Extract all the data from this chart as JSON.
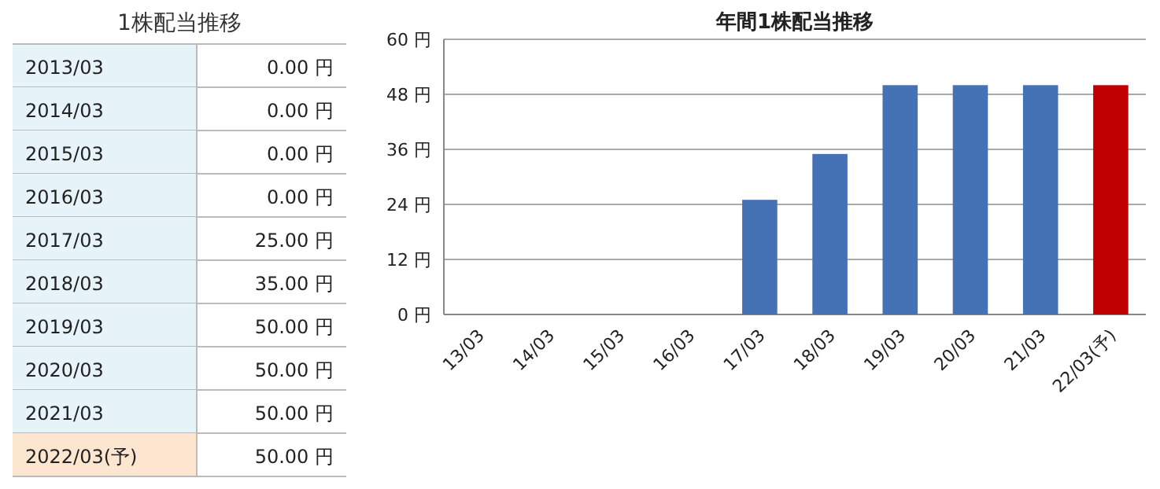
{
  "chart_data": [
    {
      "type": "other",
      "title": "1株配当推移",
      "categories": [
        "2013/03",
        "2014/03",
        "2015/03",
        "2016/03",
        "2017/03",
        "2018/03",
        "2019/03",
        "2020/03",
        "2021/03",
        "2022/03(予)"
      ],
      "value_labels": [
        "0.00 円",
        "0.00 円",
        "0.00 円",
        "0.00 円",
        "25.00 円",
        "35.00 円",
        "50.00 円",
        "50.00 円",
        "50.00 円",
        "50.00 円"
      ],
      "colors": [
        "#e6f3f8",
        "#e6f3f8",
        "#e6f3f8",
        "#e6f3f8",
        "#e6f3f8",
        "#e6f3f8",
        "#e6f3f8",
        "#e6f3f8",
        "#e6f3f8",
        "#fde6d0"
      ]
    },
    {
      "type": "bar",
      "title": "年間1株配当推移",
      "categories": [
        "13/03",
        "14/03",
        "15/03",
        "16/03",
        "17/03",
        "18/03",
        "19/03",
        "20/03",
        "21/03",
        "22/03(予)"
      ],
      "values": [
        0,
        0,
        0,
        0,
        25,
        35,
        50,
        50,
        50,
        50
      ],
      "colors": [
        "#4472b4",
        "#4472b4",
        "#4472b4",
        "#4472b4",
        "#4472b4",
        "#4472b4",
        "#4472b4",
        "#4472b4",
        "#4472b4",
        "#c00000"
      ],
      "ylim": [
        0,
        60
      ],
      "yticks": [
        {
          "value": 0,
          "label": "0 円"
        },
        {
          "value": 12,
          "label": "12 円"
        },
        {
          "value": 24,
          "label": "24 円"
        },
        {
          "value": 36,
          "label": "36 円"
        },
        {
          "value": 48,
          "label": "48 円"
        },
        {
          "value": 60,
          "label": "60 円"
        }
      ],
      "grid": "y"
    }
  ]
}
